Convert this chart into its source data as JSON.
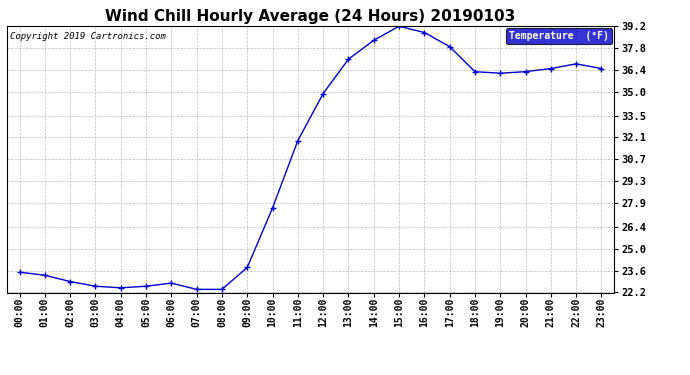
{
  "title": "Wind Chill Hourly Average (24 Hours) 20190103",
  "copyright": "Copyright 2019 Cartronics.com",
  "legend_label": "Temperature  (°F)",
  "x_labels": [
    "00:00",
    "01:00",
    "02:00",
    "03:00",
    "04:00",
    "05:00",
    "06:00",
    "07:00",
    "08:00",
    "09:00",
    "10:00",
    "11:00",
    "12:00",
    "13:00",
    "14:00",
    "15:00",
    "16:00",
    "17:00",
    "18:00",
    "19:00",
    "20:00",
    "21:00",
    "22:00",
    "23:00"
  ],
  "y_values": [
    23.5,
    23.3,
    22.9,
    22.6,
    22.5,
    22.6,
    22.8,
    22.4,
    22.4,
    23.8,
    27.6,
    31.9,
    34.9,
    37.1,
    38.3,
    39.2,
    38.8,
    37.9,
    36.3,
    36.2,
    36.3,
    36.5,
    36.8,
    36.5
  ],
  "ylim_min": 22.2,
  "ylim_max": 39.2,
  "yticks": [
    22.2,
    23.6,
    25.0,
    26.4,
    27.9,
    29.3,
    30.7,
    32.1,
    33.5,
    35.0,
    36.4,
    37.8,
    39.2
  ],
  "line_color": "#0000cc",
  "marker": "+",
  "bg_color": "#ffffff",
  "plot_bg_color": "#ffffff",
  "grid_color": "#aaaaaa",
  "title_fontsize": 11,
  "copyright_fontsize": 6.5,
  "tick_fontsize": 7,
  "ytick_fontsize": 7.5,
  "legend_bg_color": "#0000cc",
  "legend_text_color": "#ffffff",
  "legend_fontsize": 7
}
